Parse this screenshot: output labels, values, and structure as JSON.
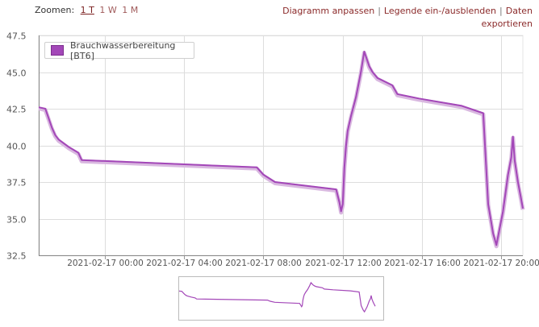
{
  "zoom": {
    "label": "Zoomen:",
    "options": [
      {
        "label": "1 T",
        "active": true
      },
      {
        "label": "1 W",
        "active": false
      },
      {
        "label": "1 M",
        "active": false
      }
    ]
  },
  "links": {
    "adjust": "Diagramm anpassen",
    "legend_toggle": "Legende ein-/ausblenden",
    "export": "Daten exportieren",
    "separator": "|"
  },
  "legend": {
    "label": "Brauchwasserbereitung [BT6]"
  },
  "colors": {
    "series": "#a347b8",
    "grid": "#dddddd",
    "axis": "#555555"
  },
  "chart_data": {
    "type": "line",
    "ylim": [
      32.5,
      47.5
    ],
    "yticks": [
      "32.5",
      "35.0",
      "37.5",
      "40.0",
      "42.5",
      "45.0",
      "47.5"
    ],
    "xlim": [
      "2021-02-16 20:40",
      "2021-02-17 21:05"
    ],
    "xticks": [
      {
        "t": "2021-02-17 00:00",
        "label": "2021-02-17 00:00"
      },
      {
        "t": "2021-02-17 04:00",
        "label": "2021-02-17 04:00"
      },
      {
        "t": "2021-02-17 08:00",
        "label": "2021-02-17 08:00"
      },
      {
        "t": "2021-02-17 12:00",
        "label": "2021-02-17 12:00"
      },
      {
        "t": "2021-02-17 16:00",
        "label": "2021-02-17 16:00"
      },
      {
        "t": "2021-02-17 20:00",
        "label": "2021-02-17 20:00"
      }
    ],
    "grid": true,
    "series": [
      {
        "name": "Brauchwasserbereitung [BT6]",
        "points": [
          [
            "2021-02-16 20:40",
            42.6
          ],
          [
            "2021-02-16 21:00",
            42.5
          ],
          [
            "2021-02-16 21:20",
            41.2
          ],
          [
            "2021-02-16 21:30",
            40.7
          ],
          [
            "2021-02-16 21:40",
            40.4
          ],
          [
            "2021-02-16 22:10",
            39.9
          ],
          [
            "2021-02-16 22:40",
            39.5
          ],
          [
            "2021-02-16 22:50",
            39.0
          ],
          [
            "2021-02-17 07:40",
            38.5
          ],
          [
            "2021-02-17 08:00",
            38.0
          ],
          [
            "2021-02-17 08:35",
            37.5
          ],
          [
            "2021-02-17 11:40",
            37.0
          ],
          [
            "2021-02-17 11:50",
            36.1
          ],
          [
            "2021-02-17 11:55",
            35.5
          ],
          [
            "2021-02-17 12:00",
            36.0
          ],
          [
            "2021-02-17 12:05",
            38.5
          ],
          [
            "2021-02-17 12:10",
            40.0
          ],
          [
            "2021-02-17 12:15",
            41.0
          ],
          [
            "2021-02-17 12:25",
            42.0
          ],
          [
            "2021-02-17 12:40",
            43.3
          ],
          [
            "2021-02-17 12:55",
            45.0
          ],
          [
            "2021-02-17 13:05",
            46.4
          ],
          [
            "2021-02-17 13:20",
            45.4
          ],
          [
            "2021-02-17 13:30",
            45.0
          ],
          [
            "2021-02-17 13:45",
            44.6
          ],
          [
            "2021-02-17 14:30",
            44.1
          ],
          [
            "2021-02-17 14:45",
            43.5
          ],
          [
            "2021-02-17 15:50",
            43.2
          ],
          [
            "2021-02-17 18:00",
            42.7
          ],
          [
            "2021-02-17 19:05",
            42.2
          ],
          [
            "2021-02-17 19:20",
            36.0
          ],
          [
            "2021-02-17 19:35",
            34.0
          ],
          [
            "2021-02-17 19:45",
            33.2
          ],
          [
            "2021-02-17 20:05",
            35.5
          ],
          [
            "2021-02-17 20:20",
            38.0
          ],
          [
            "2021-02-17 20:30",
            39.2
          ],
          [
            "2021-02-17 20:35",
            40.6
          ],
          [
            "2021-02-17 20:40",
            39.0
          ],
          [
            "2021-02-17 20:50",
            37.5
          ],
          [
            "2021-02-17 21:00",
            36.3
          ],
          [
            "2021-02-17 21:05",
            35.7
          ]
        ]
      }
    ]
  }
}
